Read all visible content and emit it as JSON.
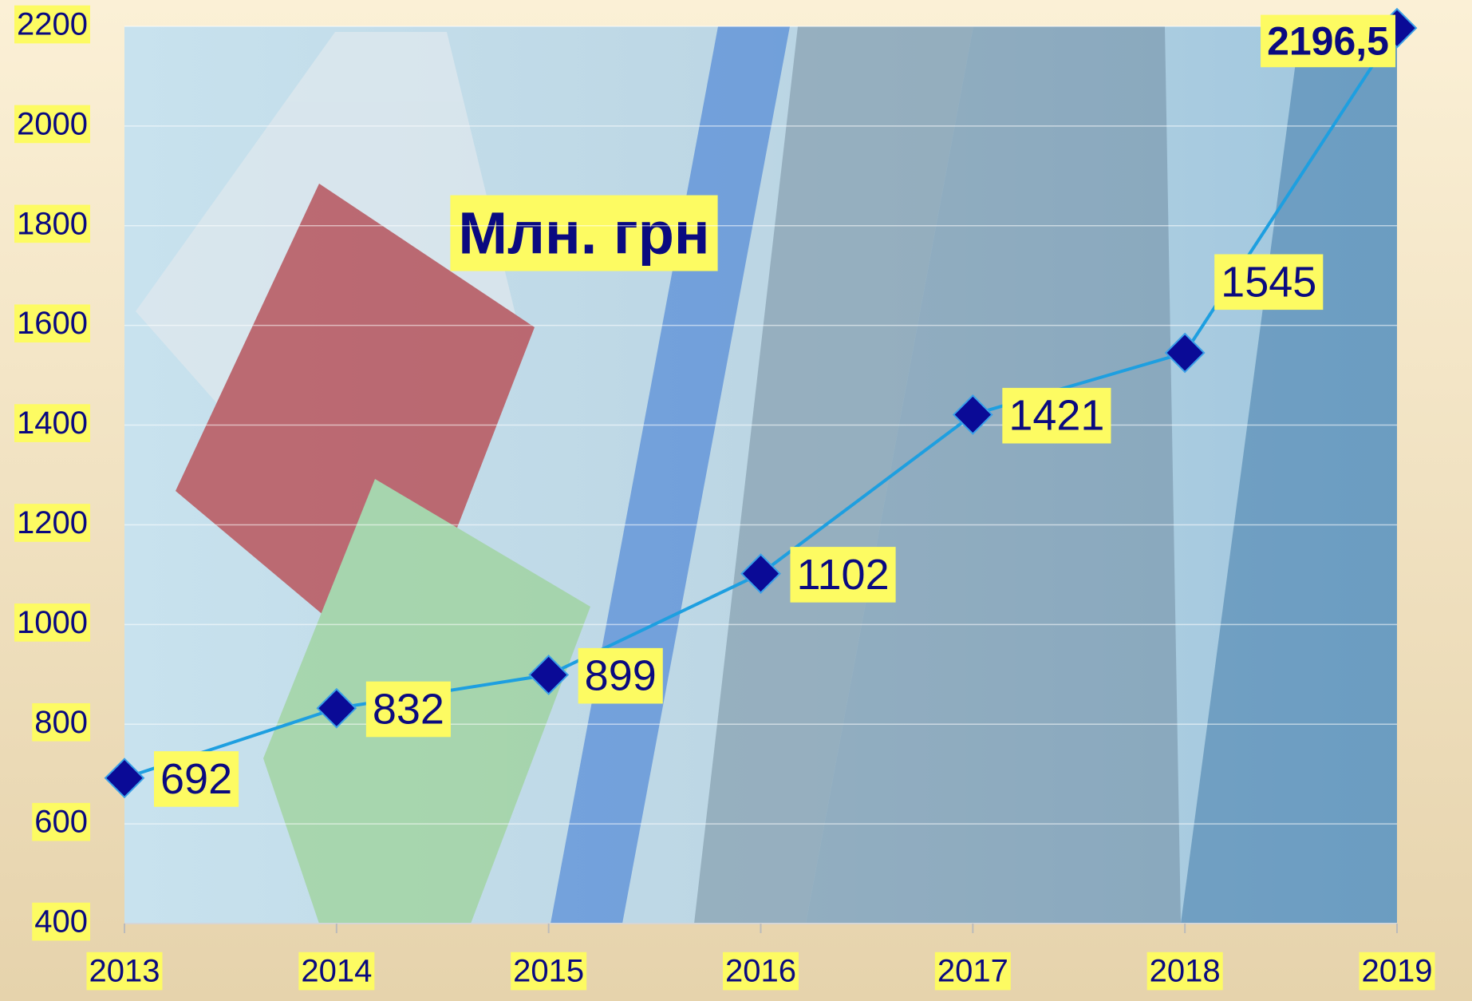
{
  "chart_data": {
    "type": "line",
    "title": "Млн. грн",
    "categories": [
      "2013",
      "2014",
      "2015",
      "2016",
      "2017",
      "2018",
      "2019"
    ],
    "values": [
      692,
      832,
      899,
      1102,
      1421,
      1545,
      2196.5
    ],
    "value_labels": [
      "692",
      "832",
      "899",
      "1102",
      "1421",
      "1545",
      "2196,5"
    ],
    "color": "#1e9fe0",
    "marker_color": "#0a0a96",
    "ylim": [
      400,
      2200
    ],
    "yticks": [
      400,
      600,
      800,
      1000,
      1200,
      1400,
      1600,
      1800,
      2000,
      2200
    ],
    "grid": true
  }
}
